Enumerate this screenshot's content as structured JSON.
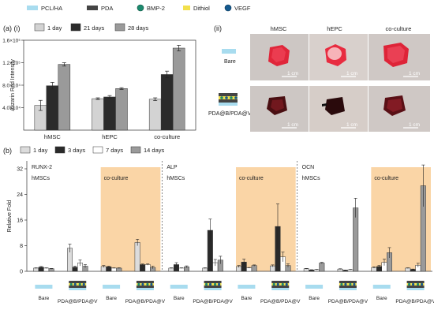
{
  "top_legend": [
    {
      "label": "PCL/HA",
      "color": "#a8dcef",
      "icon": "swatch"
    },
    {
      "label": "PDA",
      "color": "#444444",
      "icon": "swatch"
    },
    {
      "label": "BMP-2",
      "color": "#1c8a6e",
      "icon": "sphere"
    },
    {
      "label": "Dithiol",
      "color": "#f2e04c",
      "icon": "swatch"
    },
    {
      "label": "VEGF",
      "color": "#155a8f",
      "icon": "sphere"
    }
  ],
  "panel_a_i": {
    "panel_label": "(a) (i)",
    "legend": [
      "1 day",
      "21 days",
      "28 days"
    ]
  },
  "panel_a_ii": {
    "panel_label": "(ii)",
    "columns": [
      "hMSC",
      "hEPC",
      "co-culture"
    ],
    "rows": [
      "Bare",
      "PDA@B/PDA@V"
    ],
    "scale_bar": "1 cm"
  },
  "panel_b": {
    "panel_label": "(b)",
    "legend": [
      "1 day",
      "3 days",
      "7 days",
      "14 days"
    ],
    "marker_names": [
      "RUNX-2",
      "ALP",
      "OCN"
    ],
    "group_top_labels": [
      "hMSCs",
      "co-culture"
    ],
    "group_bottom_labels": [
      "Bare",
      "PDA@B/PDA@V",
      "Bare",
      "PDA@B/PDA@V"
    ]
  },
  "colors": {
    "day1": "#d3d3d3",
    "day21": "#2b2b2b",
    "day28": "#9a9a9a",
    "b_day1": "#dcdcdc",
    "b_day3": "#2a2a2a",
    "b_day7": "#ffffff",
    "b_day14": "#9a9a9a",
    "coculture_bg": "#fad5a6"
  },
  "chart_data": [
    {
      "type": "bar",
      "id": "alizarin",
      "ylabel": "Alizarin Red Intensity",
      "categories": [
        "hMSC",
        "hEPC",
        "co-culture"
      ],
      "ylim": [
        0,
        160000
      ],
      "yticks": [
        40000,
        80000,
        120000,
        160000
      ],
      "ytick_labels": [
        "4.0×10⁴",
        "8.0×10⁴",
        "1.2×10⁵",
        "1.6×10⁵"
      ],
      "series": [
        {
          "name": "1 day",
          "values": [
            44000,
            56000,
            55000
          ],
          "errors": [
            9000,
            1500,
            2500
          ]
        },
        {
          "name": "21 days",
          "values": [
            79000,
            59000,
            99000
          ],
          "errors": [
            6000,
            2500,
            6000
          ]
        },
        {
          "name": "28 days",
          "values": [
            117000,
            74000,
            146000
          ],
          "errors": [
            3000,
            1500,
            5000
          ]
        }
      ]
    },
    {
      "type": "bar",
      "id": "pcr",
      "ylabel": "Relative Fold",
      "ylim": [
        0,
        32
      ],
      "yticks": [
        0,
        8,
        16,
        24,
        32
      ],
      "ytick_labels": [
        "0",
        "8",
        "16",
        "24",
        "32"
      ],
      "series_names": [
        "1 day",
        "3 days",
        "7 days",
        "14 days"
      ],
      "markers": [
        {
          "name": "RUNX-2",
          "groups": [
            {
              "values": [
                1.0,
                1.3,
                1.0,
                0.8
              ],
              "errors": [
                0.1,
                0.2,
                0.1,
                0.1
              ]
            },
            {
              "values": [
                7.2,
                1.3,
                2.6,
                1.6
              ],
              "errors": [
                1.3,
                0.3,
                0.9,
                0.5
              ]
            },
            {
              "values": [
                1.5,
                1.4,
                1.0,
                1.0
              ],
              "errors": [
                0.3,
                0.2,
                0.1,
                0.1
              ]
            },
            {
              "values": [
                9.0,
                2.1,
                2.1,
                1.2
              ],
              "errors": [
                1.0,
                0.2,
                0.2,
                0.4
              ]
            }
          ]
        },
        {
          "name": "ALP",
          "groups": [
            {
              "values": [
                1.0,
                2.1,
                1.0,
                1.4
              ],
              "errors": [
                0.1,
                0.6,
                0.1,
                0.3
              ]
            },
            {
              "values": [
                1.0,
                12.8,
                2.7,
                3.5
              ],
              "errors": [
                0.1,
                3.5,
                1.0,
                1.2
              ]
            },
            {
              "values": [
                1.5,
                2.9,
                1.1,
                1.8
              ],
              "errors": [
                0.3,
                0.9,
                0.1,
                0.2
              ]
            },
            {
              "values": [
                1.7,
                14.0,
                4.5,
                1.8
              ],
              "errors": [
                0.3,
                7.0,
                1.5,
                0.5
              ]
            }
          ]
        },
        {
          "name": "OCN",
          "groups": [
            {
              "values": [
                0.8,
                0.4,
                0.5,
                2.6
              ],
              "errors": [
                0.1,
                0.1,
                0.1,
                0.2
              ]
            },
            {
              "values": [
                0.7,
                0.3,
                0.5,
                19.8
              ],
              "errors": [
                0.1,
                0.1,
                0.1,
                3.0
              ]
            },
            {
              "values": [
                1.2,
                1.5,
                2.8,
                5.8
              ],
              "errors": [
                0.2,
                0.3,
                1.0,
                1.6
              ]
            },
            {
              "values": [
                1.0,
                0.6,
                1.9,
                26.7
              ],
              "errors": [
                0.1,
                0.1,
                0.6,
                6.5
              ]
            }
          ]
        }
      ]
    }
  ]
}
